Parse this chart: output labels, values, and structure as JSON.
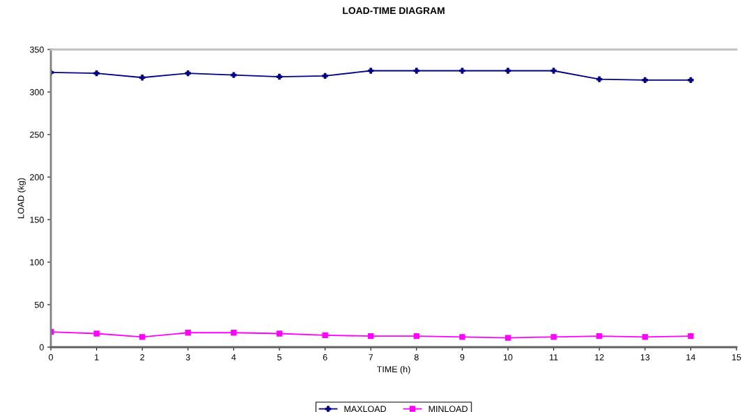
{
  "chart_data": {
    "type": "line",
    "title": "LOAD-TIME DIAGRAM",
    "xlabel": "TIME (h)",
    "ylabel": "LOAD (kg)",
    "x": [
      0,
      1,
      2,
      3,
      4,
      5,
      6,
      7,
      8,
      9,
      10,
      11,
      12,
      13,
      14
    ],
    "series": [
      {
        "name": "MAXLOAD",
        "color": "#000080",
        "marker": "cross",
        "values": [
          323,
          322,
          317,
          322,
          320,
          318,
          319,
          325,
          325,
          325,
          325,
          325,
          315,
          314,
          314
        ]
      },
      {
        "name": "MINLOAD",
        "color": "#ff00ff",
        "marker": "square",
        "values": [
          18,
          16,
          12,
          17,
          17,
          16,
          14,
          13,
          13,
          12,
          11,
          12,
          13,
          12,
          13
        ]
      }
    ],
    "xlim": [
      0,
      15
    ],
    "xticks": [
      0,
      1,
      2,
      3,
      4,
      5,
      6,
      7,
      8,
      9,
      10,
      11,
      12,
      13,
      14,
      15
    ],
    "ylim": [
      0,
      350
    ],
    "yticks": [
      0,
      50,
      100,
      150,
      200,
      250,
      300,
      350
    ],
    "grid": false,
    "legend": "bottom"
  }
}
